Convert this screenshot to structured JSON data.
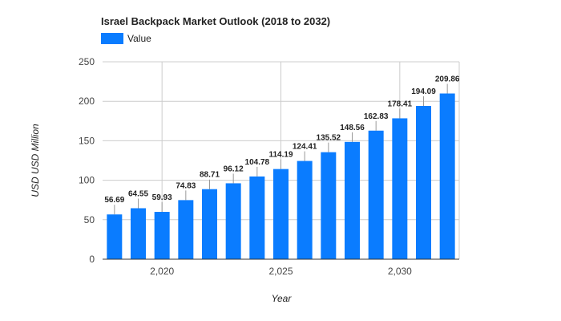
{
  "chart_data": {
    "type": "bar",
    "title": "Israel Backpack Market Outlook (2018 to 2032)",
    "xlabel": "Year",
    "ylabel": "USD USD Million",
    "legend": {
      "position": "top-left"
    },
    "grid": true,
    "colors": {
      "bar": "#0a7cff",
      "grid": "#cccccc",
      "axis": "#333333"
    },
    "x": [
      2018,
      2019,
      2020,
      2021,
      2022,
      2023,
      2024,
      2025,
      2026,
      2027,
      2028,
      2029,
      2030,
      2031,
      2032
    ],
    "x_ticks": [
      2020,
      2025,
      2030
    ],
    "x_tick_labels": [
      "2,020",
      "2,025",
      "2,030"
    ],
    "ylim": [
      0,
      250
    ],
    "y_ticks": [
      0,
      50,
      100,
      150,
      200,
      250
    ],
    "series": [
      {
        "name": "Value",
        "values": [
          56.69,
          64.55,
          59.93,
          74.83,
          88.71,
          96.12,
          104.78,
          114.19,
          124.41,
          135.52,
          148.56,
          162.83,
          178.41,
          194.09,
          209.86
        ]
      }
    ]
  }
}
